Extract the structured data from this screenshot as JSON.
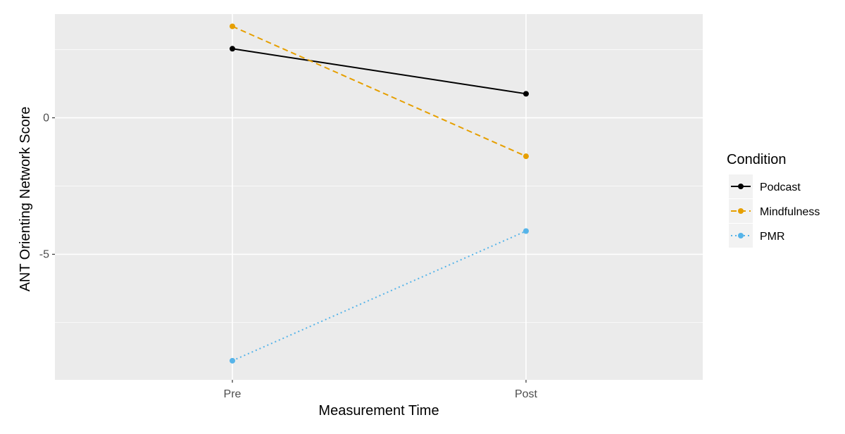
{
  "chart_data": {
    "type": "line",
    "x": [
      "Pre",
      "Post"
    ],
    "xlabel": "Measurement Time",
    "ylabel": "ANT Orienting Network Score",
    "ylim": [
      -9.6,
      3.8
    ],
    "yticks": [
      0,
      -5
    ],
    "grid": true,
    "legend": {
      "title": "Condition",
      "position": "right"
    },
    "series": [
      {
        "name": "Podcast",
        "values": [
          2.53,
          0.88
        ],
        "color": "#000000",
        "dash": "solid"
      },
      {
        "name": "Mindfulness",
        "values": [
          3.35,
          -1.41
        ],
        "color": "#E69F00",
        "dash": "dashed"
      },
      {
        "name": "PMR",
        "values": [
          -8.9,
          -4.15
        ],
        "color": "#56B4E9",
        "dash": "dotted"
      }
    ],
    "panel_background": "#EBEBEB",
    "grid_color": "#FFFFFF"
  }
}
